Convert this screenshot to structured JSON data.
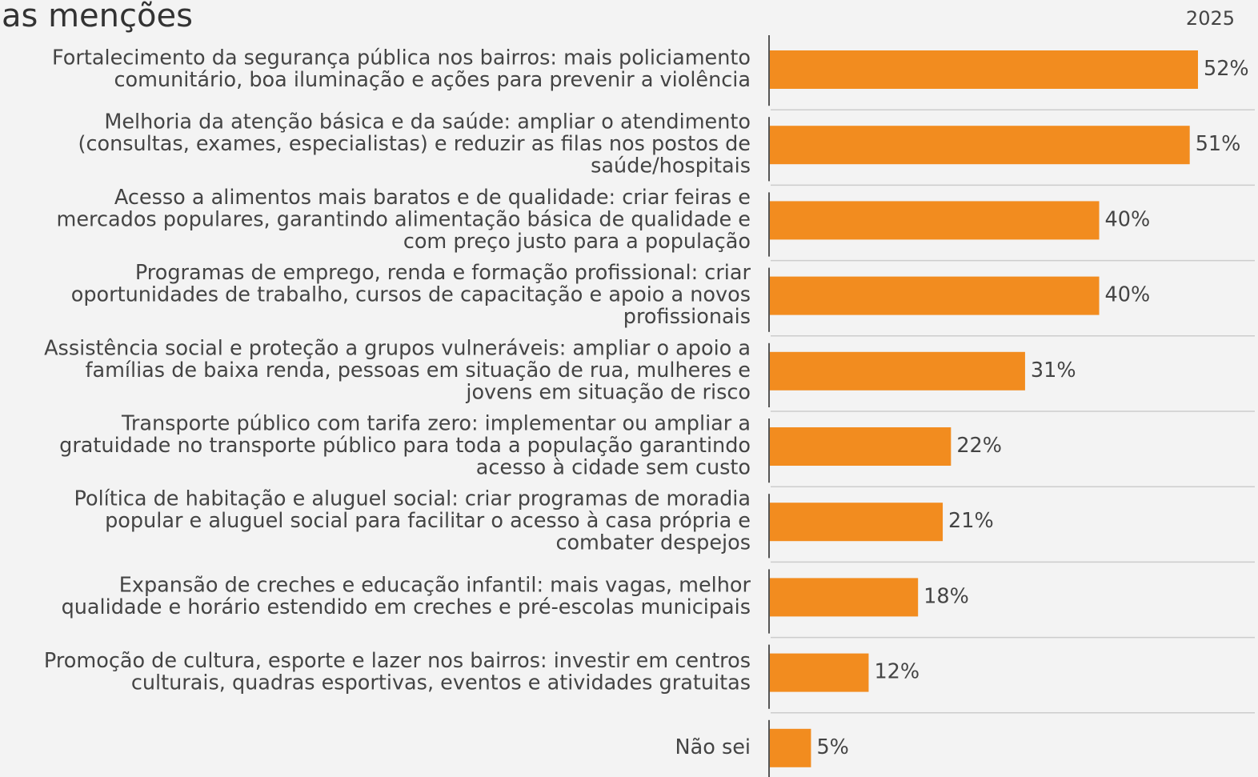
{
  "chart_data": {
    "type": "hbar",
    "title": "as menções",
    "categories": [
      [
        "Fortalecimento da segurança pública nos bairros: mais policiamento",
        "comunitário, boa iluminação e ações para prevenir a violência"
      ],
      [
        "Melhoria da atenção básica e da saúde: ampliar o atendimento",
        "(consultas, exames, especialistas) e reduzir as filas nos postos de",
        "saúde/hospitais"
      ],
      [
        "Acesso a alimentos mais baratos e de qualidade: criar feiras e",
        "mercados populares, garantindo alimentação básica de qualidade e",
        "com preço justo para a população"
      ],
      [
        "Programas de emprego, renda e formação profissional: criar",
        "oportunidades de trabalho, cursos de capacitação e apoio a novos",
        "profissionais"
      ],
      [
        "Assistência social e proteção a grupos vulneráveis: ampliar o apoio a",
        "famílias de baixa renda, pessoas em situação de rua, mulheres e",
        "jovens em situação de risco"
      ],
      [
        "Transporte público com tarifa zero: implementar ou ampliar a",
        "gratuidade no transporte público para toda a população garantindo",
        "acesso à cidade sem custo"
      ],
      [
        "Política de habitação e aluguel social: criar programas de moradia",
        "popular e aluguel social para facilitar o acesso à casa própria e",
        "combater despejos"
      ],
      [
        "Expansão de creches e educação infantil: mais vagas, melhor",
        "qualidade e horário estendido em creches e pré-escolas municipais"
      ],
      [
        "Promoção de cultura, esporte e lazer nos bairros: investir em centros",
        "culturais, quadras esportivas, eventos e atividades gratuitas"
      ],
      [
        "Não sei"
      ]
    ],
    "series": [
      {
        "name": "2025",
        "color": "#f28c1f",
        "values": [
          52,
          51,
          40,
          40,
          31,
          22,
          21,
          18,
          12,
          5
        ],
        "value_labels": [
          "52%",
          "51%",
          "40%",
          "40%",
          "31%",
          "22%",
          "21%",
          "18%",
          "12%",
          "5%"
        ]
      }
    ],
    "xlim": [
      0,
      59
    ]
  }
}
